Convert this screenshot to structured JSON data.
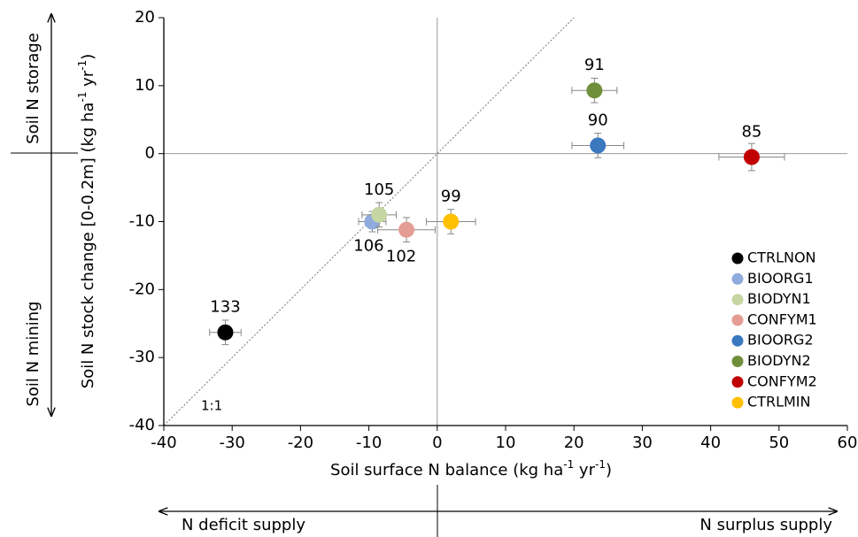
{
  "chart_data": {
    "type": "scatter",
    "x_label": [
      "Soil surface N balance (kg ha",
      "-1",
      " yr",
      "-1",
      ")"
    ],
    "y_label": [
      "Soil N stock change [0-0.2m] (kg ha",
      "-1",
      " yr",
      "-1",
      ")"
    ],
    "xlim": [
      -40,
      60
    ],
    "ylim": [
      -40,
      20
    ],
    "xticks": [
      -40,
      -30,
      -20,
      -10,
      0,
      10,
      20,
      30,
      40,
      50,
      60
    ],
    "yticks": [
      -40,
      -30,
      -20,
      -10,
      0,
      10,
      20
    ],
    "reference_line_label": "1:1",
    "annotations": {
      "storage": "Soil N storage",
      "mining": "Soil N mining",
      "deficit": "N deficit supply",
      "surplus": "N surplus supply"
    },
    "series": [
      {
        "name": "CTRLNON",
        "color": "#000000",
        "x": [
          -31
        ],
        "values": [
          -26.3
        ],
        "xerr": [
          2.3
        ],
        "yerr": [
          1.8
        ],
        "labels": [
          133
        ]
      },
      {
        "name": "BIOORG1",
        "color": "#8faadc",
        "x": [
          -9.5
        ],
        "values": [
          -10
        ],
        "xerr": [
          2
        ],
        "yerr": [
          1.5
        ],
        "labels": [
          106
        ]
      },
      {
        "name": "BIODYN1",
        "color": "#c5d6a2",
        "x": [
          -8.5
        ],
        "values": [
          -9
        ],
        "xerr": [
          2.5
        ],
        "yerr": [
          1.8
        ],
        "labels": [
          105
        ]
      },
      {
        "name": "CONFYM1",
        "color": "#e49d94",
        "x": [
          -4.5
        ],
        "values": [
          -11.2
        ],
        "xerr": [
          4.2
        ],
        "yerr": [
          1.8
        ],
        "labels": [
          102
        ]
      },
      {
        "name": "BIOORG2",
        "color": "#3a78c0",
        "x": [
          23.5
        ],
        "values": [
          1.2
        ],
        "xerr": [
          3.8
        ],
        "yerr": [
          1.8
        ],
        "labels": [
          90
        ]
      },
      {
        "name": "BIODYN2",
        "color": "#6f8f3a",
        "x": [
          23
        ],
        "values": [
          9.3
        ],
        "xerr": [
          3.3
        ],
        "yerr": [
          1.8
        ],
        "labels": [
          91
        ]
      },
      {
        "name": "CONFYM2",
        "color": "#c00000",
        "x": [
          46
        ],
        "values": [
          -0.5
        ],
        "xerr": [
          4.8
        ],
        "yerr": [
          2
        ],
        "labels": [
          85
        ]
      },
      {
        "name": "CTRLMIN",
        "color": "#ffc000",
        "x": [
          2
        ],
        "values": [
          -10
        ],
        "xerr": [
          3.6
        ],
        "yerr": [
          1.8
        ],
        "labels": [
          99
        ]
      }
    ]
  }
}
